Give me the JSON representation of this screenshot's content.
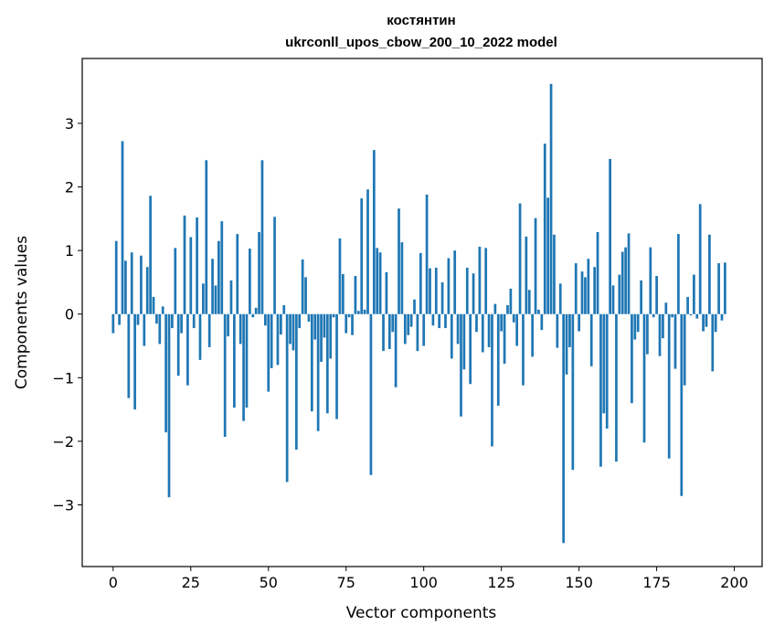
{
  "chart_data": {
    "type": "bar",
    "title_line1": "костянтин",
    "title_line2": "ukrconll_upos_cbow_200_10_2022 model",
    "xlabel": "Vector components",
    "ylabel": "Components values",
    "xlim": [
      -9.95,
      208.95
    ],
    "ylim": [
      -3.97,
      4.02
    ],
    "xticks": [
      0,
      25,
      50,
      75,
      100,
      125,
      150,
      175,
      200
    ],
    "xtick_labels": [
      "0",
      "25",
      "50",
      "75",
      "100",
      "125",
      "150",
      "175",
      "200"
    ],
    "yticks": [
      -3,
      -2,
      -1,
      0,
      1,
      2,
      3
    ],
    "ytick_labels": [
      "−3",
      "−2",
      "−1",
      "0",
      "1",
      "2",
      "3"
    ],
    "bar_color": "#1f77b4",
    "grid": false,
    "legend": "none",
    "values": [
      -0.3,
      1.15,
      -0.17,
      2.72,
      0.84,
      -1.32,
      0.97,
      -1.5,
      -0.17,
      0.92,
      -0.5,
      0.74,
      1.86,
      0.27,
      -0.15,
      -0.47,
      0.12,
      -1.86,
      -2.88,
      -0.22,
      1.04,
      -0.97,
      -0.3,
      1.55,
      -1.12,
      1.21,
      -0.22,
      1.52,
      -0.72,
      0.48,
      2.42,
      -0.52,
      0.87,
      0.45,
      1.15,
      1.46,
      -1.93,
      -0.35,
      0.53,
      -1.47,
      1.26,
      -0.47,
      -1.68,
      -1.47,
      1.03,
      -0.05,
      0.1,
      1.29,
      2.42,
      -0.18,
      -1.22,
      -0.85,
      1.53,
      -0.8,
      -0.32,
      0.14,
      -2.64,
      -0.47,
      -0.57,
      -2.13,
      -0.22,
      0.86,
      0.58,
      -0.12,
      -1.53,
      -0.4,
      -1.84,
      -0.75,
      -0.37,
      -1.56,
      -0.7,
      -0.05,
      -1.65,
      1.19,
      0.63,
      -0.3,
      -0.05,
      -0.33,
      0.6,
      0.05,
      1.82,
      0.07,
      1.96,
      -2.53,
      2.58,
      1.04,
      0.97,
      -0.58,
      0.66,
      -0.55,
      -0.28,
      -1.15,
      1.66,
      1.13,
      -0.47,
      -0.33,
      -0.2,
      0.23,
      -0.58,
      0.96,
      -0.5,
      1.88,
      0.72,
      -0.18,
      0.73,
      -0.22,
      0.5,
      -0.22,
      0.88,
      -0.7,
      1.0,
      -0.47,
      -1.61,
      -0.87,
      0.73,
      -1.1,
      0.64,
      -0.28,
      1.06,
      -0.6,
      1.04,
      -0.52,
      -2.08,
      0.16,
      -1.44,
      -0.27,
      -0.78,
      0.14,
      0.4,
      -0.13,
      -0.5,
      1.74,
      -1.12,
      1.22,
      0.38,
      -0.67,
      1.51,
      0.07,
      -0.25,
      2.68,
      1.83,
      3.62,
      1.25,
      -0.53,
      0.48,
      -3.6,
      -0.95,
      -0.52,
      -2.45,
      0.8,
      -0.27,
      0.67,
      0.58,
      0.87,
      -0.82,
      0.74,
      1.29,
      -2.4,
      -1.56,
      -1.8,
      2.44,
      0.45,
      -2.32,
      0.62,
      0.98,
      1.05,
      1.27,
      -1.4,
      -0.4,
      -0.28,
      0.53,
      -2.02,
      -0.63,
      1.05,
      -0.05,
      0.6,
      -0.66,
      -0.38,
      0.18,
      -2.27,
      -0.05,
      -0.86,
      1.26,
      -2.86,
      -1.12,
      0.27,
      -0.02,
      0.62,
      -0.07,
      1.73,
      -0.27,
      -0.2,
      1.25,
      -0.9,
      -0.28,
      0.8,
      -0.1,
      0.81
    ]
  }
}
